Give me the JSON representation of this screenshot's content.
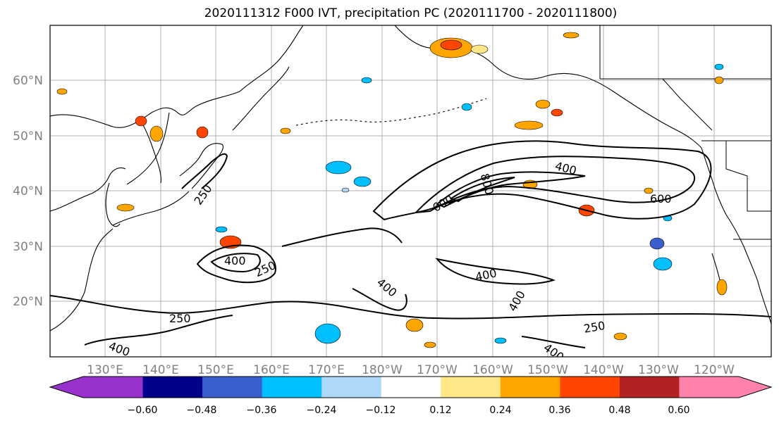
{
  "title": "2020111312 F000 IVT, precipitation PC (2020111700 - 2020111800)",
  "map": {
    "lat_ticks": [
      "60°N",
      "50°N",
      "40°N",
      "30°N",
      "20°N"
    ],
    "lon_ticks": [
      "130°E",
      "140°E",
      "150°E",
      "160°E",
      "170°E",
      "180°W",
      "170°W",
      "160°W",
      "150°W",
      "140°W",
      "130°W",
      "120°W"
    ],
    "contour_labels": [
      "250",
      "400",
      "250",
      "400",
      "250",
      "400",
      "600",
      "800",
      "400",
      "600",
      "400",
      "250",
      "400",
      "400"
    ]
  },
  "colorbar": {
    "colors": [
      "#9932cc",
      "#00008b",
      "#3a5fcd",
      "#00bfff",
      "#add8f8",
      "#ffffff",
      "#ffe787",
      "#ffa500",
      "#ff4500",
      "#b22222",
      "#ff82ab"
    ],
    "tick_labels": [
      "−0.60",
      "−0.48",
      "−0.36",
      "−0.24",
      "−0.12",
      "0.12",
      "0.24",
      "0.36",
      "0.48",
      "0.60"
    ]
  },
  "colors": {
    "positive_light": "#ffe787",
    "positive_mid": "#ffa500",
    "positive_high": "#ff4500",
    "negative_light": "#add8f8",
    "negative_mid": "#00bfff",
    "negative_high": "#3a5fcd"
  }
}
